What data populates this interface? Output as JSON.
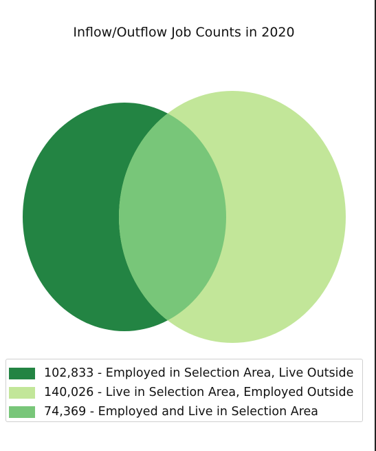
{
  "chart_data": {
    "type": "venn",
    "title": "Inflow/Outflow Job Counts in 2020",
    "series": [
      {
        "name": "102,833 - Employed in Selection Area, Live Outside",
        "value": 102833,
        "color": "#238443"
      },
      {
        "name": "140,026 - Live in Selection Area, Employed Outside",
        "value": 140026,
        "color": "#c2e699"
      },
      {
        "name": "74,369 - Employed and Live in Selection Area",
        "value": 74369,
        "color": "#78c679"
      }
    ],
    "legend_position": "bottom"
  }
}
